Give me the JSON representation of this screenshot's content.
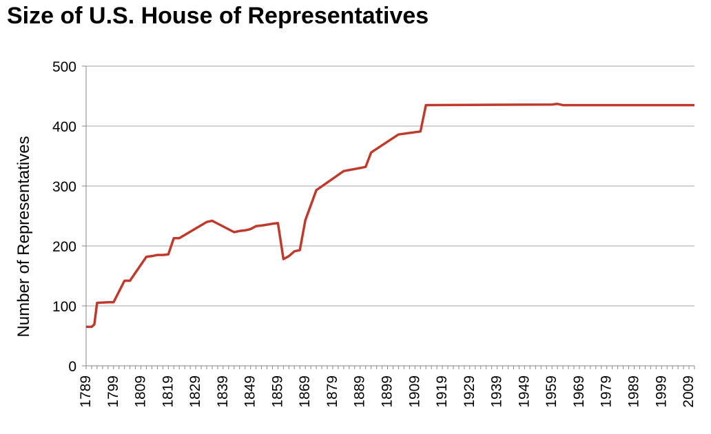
{
  "chart_data": {
    "type": "line",
    "title": "Size of U.S. House of Representatives",
    "xlabel": "",
    "ylabel": "Number of Representatives",
    "ylim": [
      0,
      500
    ],
    "yticks": [
      0,
      100,
      200,
      300,
      400,
      500
    ],
    "xlim": [
      1789,
      2011
    ],
    "xticks": [
      1789,
      1799,
      1809,
      1819,
      1829,
      1839,
      1849,
      1859,
      1869,
      1879,
      1889,
      1899,
      1909,
      1919,
      1929,
      1939,
      1949,
      1959,
      1969,
      1979,
      1989,
      1999,
      2009
    ],
    "grid": "horizontal",
    "line_color": "#c0392b",
    "series": [
      {
        "name": "",
        "x": [
          1789,
          1790,
          1791,
          1792,
          1793,
          1797,
          1799,
          1803,
          1805,
          1811,
          1813,
          1815,
          1817,
          1819,
          1821,
          1823,
          1833,
          1835,
          1843,
          1845,
          1847,
          1849,
          1851,
          1853,
          1857,
          1859,
          1861,
          1863,
          1865,
          1867,
          1869,
          1873,
          1883,
          1889,
          1891,
          1893,
          1903,
          1911,
          1913,
          1959,
          1961,
          1963,
          2011
        ],
        "y": [
          65,
          65,
          65,
          69,
          105,
          106,
          106,
          142,
          142,
          182,
          183,
          185,
          185,
          186,
          213,
          213,
          240,
          242,
          223,
          225,
          226,
          228,
          233,
          234,
          237,
          238,
          178,
          183,
          191,
          193,
          243,
          293,
          325,
          330,
          332,
          356,
          386,
          391,
          435,
          436,
          437,
          435,
          435
        ]
      }
    ]
  }
}
